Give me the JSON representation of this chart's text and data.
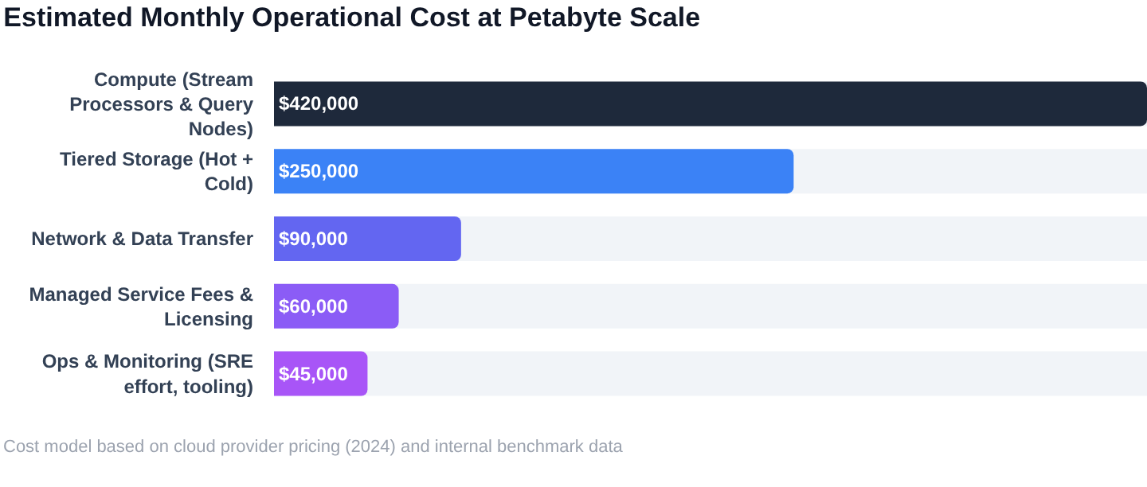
{
  "chart_data": {
    "type": "bar",
    "orientation": "horizontal",
    "title": "Estimated Monthly Operational Cost at Petabyte Scale",
    "categories": [
      "Compute (Stream Processors & Query Nodes)",
      "Tiered Storage (Hot + Cold)",
      "Network & Data Transfer",
      "Managed Service Fees & Licensing",
      "Ops & Monitoring (SRE effort, tooling)"
    ],
    "values": [
      420000,
      250000,
      90000,
      60000,
      45000
    ],
    "colors": [
      "#1e293b",
      "#3b82f6",
      "#6366f1",
      "#8b5cf6",
      "#a855f7"
    ],
    "value_labels": [
      "$420,000",
      "$250,000",
      "$90,000",
      "$60,000",
      "$45,000"
    ],
    "annotations": [
      "Cost model based on cloud provider pricing (2024) and internal benchmark data"
    ]
  }
}
